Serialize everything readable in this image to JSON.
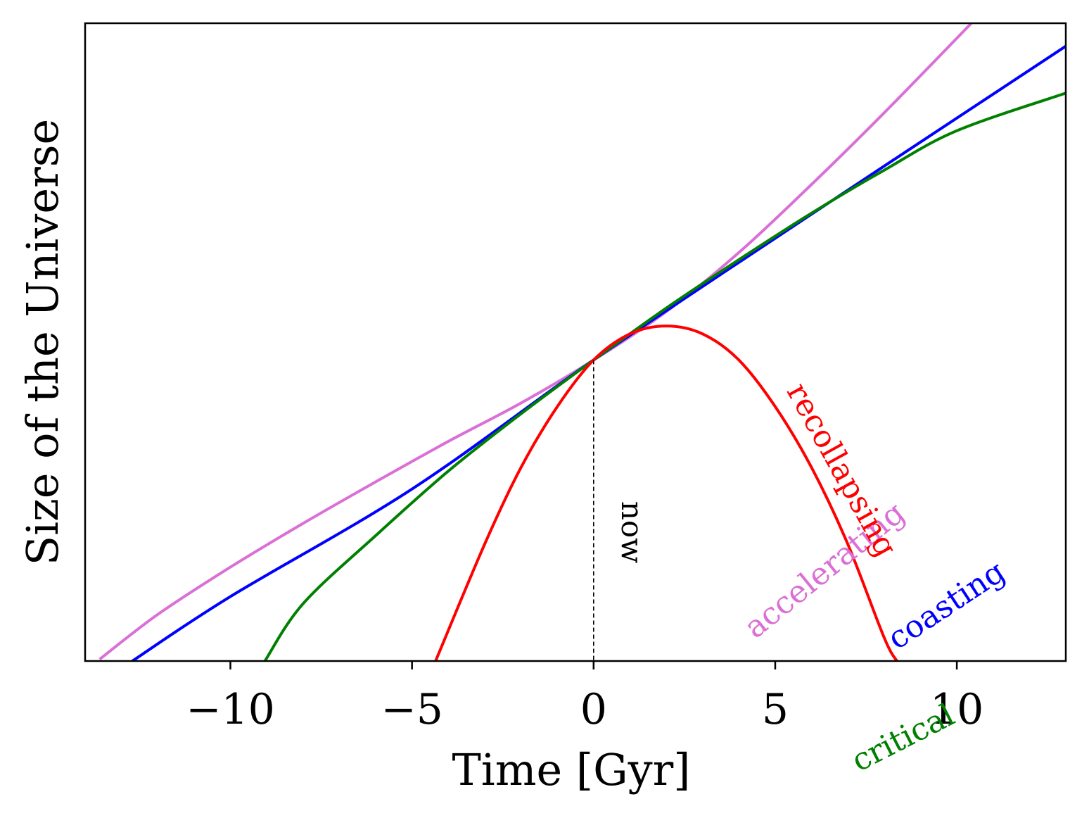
{
  "chart_data": {
    "type": "line",
    "title": "",
    "xlabel": "Time [Gyr]",
    "ylabel": "Size of the Universe",
    "xlim": [
      -14,
      13
    ],
    "ylim": [
      0,
      1.78
    ],
    "x_ticks": [
      {
        "value": -10,
        "label": "−10"
      },
      {
        "value": -5,
        "label": "−5"
      },
      {
        "value": 0,
        "label": "0"
      },
      {
        "value": 5,
        "label": "5"
      },
      {
        "value": 10,
        "label": "10"
      }
    ],
    "y_ticks_shown": false,
    "grid": false,
    "legend": "none (labels placed directly on curves)",
    "series": [
      {
        "name": "accelerating",
        "color": "#da70d6",
        "x": [
          -13.6,
          -12,
          -10,
          -8,
          -6,
          -4,
          -2,
          0,
          2,
          4,
          6,
          8,
          10.4
        ],
        "y": [
          0.005,
          0.13,
          0.262,
          0.384,
          0.5,
          0.613,
          0.72,
          0.84,
          0.975,
          1.14,
          1.33,
          1.53,
          1.78
        ]
      },
      {
        "name": "coasting",
        "color": "#0000ff",
        "x": [
          -12.7,
          -10,
          -5,
          0,
          5,
          13
        ],
        "y": [
          0.0,
          0.18,
          0.48,
          0.84,
          1.18,
          1.716
        ]
      },
      {
        "name": "critical",
        "color": "#008000",
        "x": [
          -9.05,
          -8,
          -6,
          -4,
          -2,
          0,
          2,
          4,
          6,
          8,
          10,
          13
        ],
        "y": [
          0.0,
          0.16,
          0.35,
          0.53,
          0.69,
          0.84,
          0.985,
          1.12,
          1.25,
          1.37,
          1.48,
          1.585
        ]
      },
      {
        "name": "recollapsing",
        "color": "#ff0000",
        "x": [
          -4.35,
          -3,
          -2,
          -1,
          0,
          1,
          2,
          3,
          4,
          5,
          6,
          7,
          8,
          8.35
        ],
        "y": [
          0.0,
          0.326,
          0.54,
          0.71,
          0.84,
          0.913,
          0.935,
          0.913,
          0.84,
          0.71,
          0.54,
          0.326,
          0.065,
          0.0
        ]
      }
    ],
    "annotations": [
      {
        "text": "now",
        "x": 0,
        "style": "dashed vertical line from curve intersection down to x-axis"
      }
    ]
  }
}
